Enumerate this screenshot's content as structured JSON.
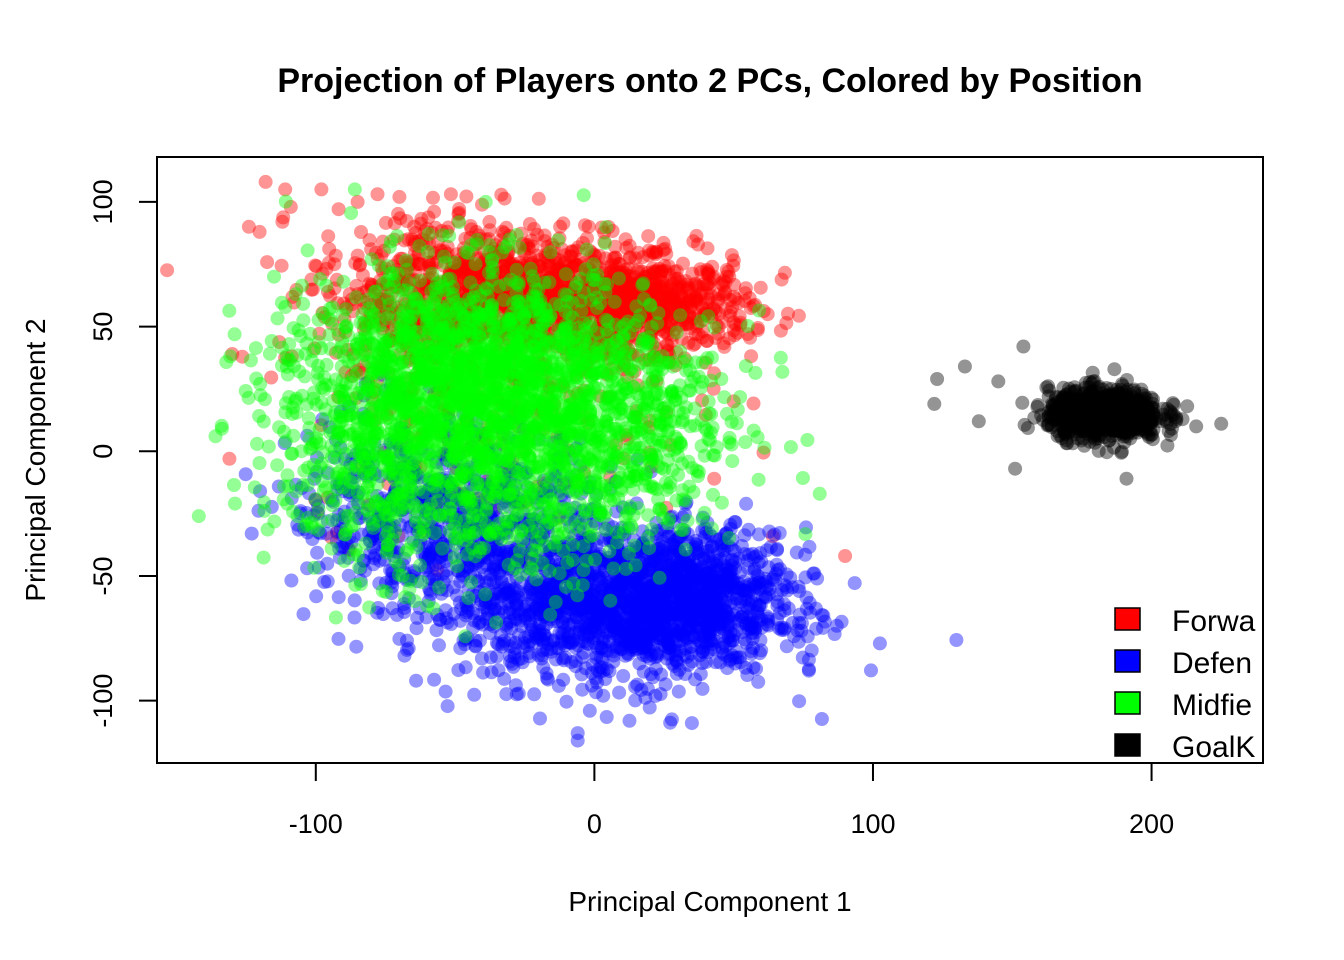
{
  "chart_data": {
    "type": "scatter",
    "title": "Projection of Players onto 2 PCs, Colored by Position",
    "xlabel": "Principal Component 1",
    "ylabel": "Principal Component 2",
    "xlim": [
      -157,
      240
    ],
    "ylim": [
      -125,
      118
    ],
    "x_ticks": [
      -100,
      0,
      100,
      200
    ],
    "y_ticks": [
      -100,
      -50,
      0,
      50,
      100
    ],
    "x_tick_labels": [
      "-100",
      "0",
      "100",
      "200"
    ],
    "y_tick_labels": [
      "-100",
      "-50",
      "0",
      "50",
      "100"
    ],
    "grid": false,
    "legend_position": "bottom-right",
    "series": [
      {
        "name": "Forwa",
        "color": "#FF0000",
        "clusters": [
          {
            "cx": -20,
            "cy": 62,
            "sx": 28,
            "sy": 12,
            "n": 900
          },
          {
            "cx": 20,
            "cy": 58,
            "sx": 18,
            "sy": 9,
            "n": 500
          },
          {
            "cx": -60,
            "cy": 65,
            "sx": 20,
            "sy": 18,
            "n": 350
          },
          {
            "cx": -35,
            "cy": 20,
            "sx": 35,
            "sy": 25,
            "n": 220
          }
        ],
        "outliers": [
          [
            -118,
            108
          ],
          [
            -111,
            105
          ],
          [
            -98,
            105
          ],
          [
            -85,
            100
          ],
          [
            -124,
            90
          ],
          [
            -130,
            39
          ],
          [
            -131,
            -3
          ],
          [
            90,
            -42
          ],
          [
            50,
            20
          ],
          [
            43,
            -11
          ],
          [
            55,
            47
          ],
          [
            -112,
            92
          ],
          [
            -70,
            102
          ]
        ]
      },
      {
        "name": "Defen",
        "color": "#0000FF",
        "clusters": [
          {
            "cx": 10,
            "cy": -62,
            "sx": 28,
            "sy": 15,
            "n": 1500
          },
          {
            "cx": 40,
            "cy": -55,
            "sx": 15,
            "sy": 12,
            "n": 400
          },
          {
            "cx": -45,
            "cy": -30,
            "sx": 25,
            "sy": 20,
            "n": 600
          },
          {
            "cx": -80,
            "cy": -25,
            "sx": 15,
            "sy": 18,
            "n": 150
          }
        ],
        "outliers": [
          [
            -6,
            -113
          ],
          [
            -6,
            -116
          ],
          [
            87,
            -70
          ],
          [
            77,
            -88
          ],
          [
            -123,
            -33
          ],
          [
            -120,
            -16
          ],
          [
            -91,
            16
          ],
          [
            35,
            -109
          ],
          [
            -64,
            -92
          ]
        ]
      },
      {
        "name": "Midfie",
        "color": "#00FF00",
        "clusters": [
          {
            "cx": -40,
            "cy": 30,
            "sx": 30,
            "sy": 22,
            "n": 1500
          },
          {
            "cx": -75,
            "cy": 5,
            "sx": 20,
            "sy": 28,
            "n": 500
          },
          {
            "cx": 5,
            "cy": 10,
            "sx": 25,
            "sy": 20,
            "n": 450
          },
          {
            "cx": -20,
            "cy": -20,
            "sx": 25,
            "sy": 18,
            "n": 300
          }
        ],
        "outliers": [
          [
            -142,
            -26
          ],
          [
            -136,
            6
          ],
          [
            -86,
            105
          ],
          [
            -39,
            100
          ],
          [
            -120,
            27
          ],
          [
            -115,
            70
          ],
          [
            -129,
            -21
          ],
          [
            -76,
            -56
          ],
          [
            -60,
            -62
          ]
        ]
      },
      {
        "name": "GoalK",
        "color": "#000000",
        "clusters": [
          {
            "cx": 183,
            "cy": 15,
            "sx": 10,
            "sy": 5,
            "n": 900
          }
        ],
        "outliers": [
          [
            154,
            42
          ],
          [
            133,
            34
          ],
          [
            123,
            29
          ],
          [
            122,
            19
          ],
          [
            145,
            28
          ],
          [
            151,
            -7
          ],
          [
            191,
            -11
          ],
          [
            225,
            11
          ],
          [
            138,
            12
          ]
        ]
      }
    ]
  }
}
